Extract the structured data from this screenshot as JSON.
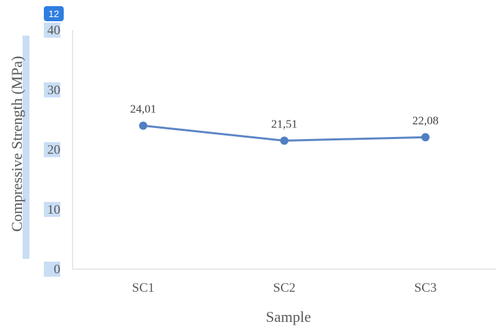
{
  "badge": {
    "count": "12"
  },
  "colors": {
    "line": "#5b86c5",
    "marker": "#4f7fc2",
    "axis": "#d0d0d0",
    "highlight": "#c9ddf5",
    "badge": "#2f7de1"
  },
  "chart_data": {
    "type": "line",
    "xlabel": "Sample",
    "ylabel": "Compressive Strength (MPa)",
    "categories": [
      "SC1",
      "SC2",
      "SC3"
    ],
    "series": [
      {
        "values": [
          24.01,
          21.51,
          22.08
        ],
        "labels": [
          "24,01",
          "21,51",
          "22,08"
        ]
      }
    ],
    "ylim": [
      0,
      40
    ],
    "yticks": [
      0,
      10,
      20,
      30,
      40
    ],
    "ytick_labels": [
      "0",
      "10",
      "20",
      "30",
      "40"
    ],
    "grid": false,
    "legend": "none"
  }
}
